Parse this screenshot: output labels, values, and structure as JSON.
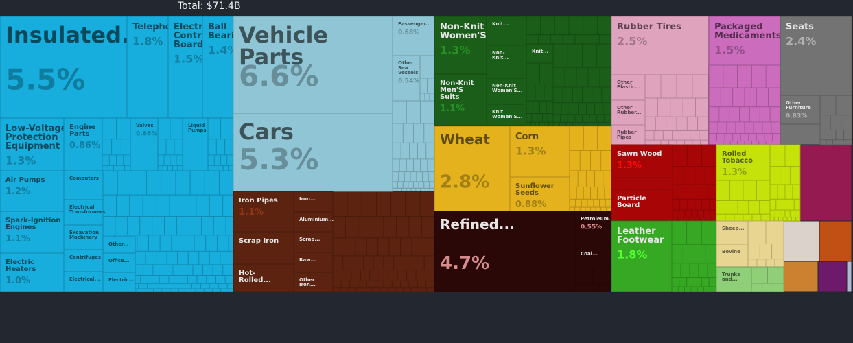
{
  "header": {
    "total": "Total: $71.4B"
  },
  "colors": {
    "background": "#222730",
    "machinery": "#17addc",
    "transportation": "#8fc5d4",
    "metals": "#5b2310",
    "vegetable_products": "#1a5e19",
    "foodstuffs_yellow": "#e3b21d",
    "mineral_dark": "#2b0808",
    "chemicals_pink": "#e0a3be",
    "chemicals_magenta": "#cb6cbc",
    "misc_grey": "#737373",
    "wood_red": "#a80606",
    "foodstuffs_lime": "#c5e20a",
    "footwear_green": "#36a823"
  },
  "chart_data": {
    "type": "treemap",
    "total": "Total: $71.4B",
    "tiles": [
      {
        "label": "Insulated...",
        "value": "5.5%",
        "group": "machinery"
      },
      {
        "label": "Telephones",
        "value": "1.8%",
        "group": "machinery"
      },
      {
        "label": "Electrical Control Boards",
        "value": "1.5%",
        "group": "machinery"
      },
      {
        "label": "Ball Bearings",
        "value": "1.4%",
        "group": "machinery"
      },
      {
        "label": "Low-Voltage Protection Equipment",
        "value": "1.3%",
        "group": "machinery"
      },
      {
        "label": "Engine Parts",
        "value": "0.86%",
        "group": "machinery"
      },
      {
        "label": "Valves",
        "value": "0.66%",
        "group": "machinery"
      },
      {
        "label": "Liquid Pumps",
        "value": "",
        "group": "machinery"
      },
      {
        "label": "Air Pumps",
        "value": "1.2%",
        "group": "machinery"
      },
      {
        "label": "Computers",
        "value": "",
        "group": "machinery"
      },
      {
        "label": "Electrical Transformers",
        "value": "",
        "group": "machinery"
      },
      {
        "label": "Spark-Ignition Engines",
        "value": "1.1%",
        "group": "machinery"
      },
      {
        "label": "Excavation Machinery",
        "value": "",
        "group": "machinery"
      },
      {
        "label": "Centrifuges",
        "value": "",
        "group": "machinery"
      },
      {
        "label": "Electric Heaters",
        "value": "1.0%",
        "group": "machinery"
      },
      {
        "label": "Electrical...",
        "value": "",
        "group": "machinery"
      },
      {
        "label": "Other...",
        "value": "",
        "group": "machinery"
      },
      {
        "label": "Office...",
        "value": "",
        "group": "machinery"
      },
      {
        "label": "Electric...",
        "value": "",
        "group": "machinery"
      },
      {
        "label": "Vehicle Parts",
        "value": "6.6%",
        "group": "transportation"
      },
      {
        "label": "Passenger...",
        "value": "0.68%",
        "group": "transportation"
      },
      {
        "label": "Other Sea Vessels",
        "value": "0.54%",
        "group": "transportation"
      },
      {
        "label": "Cars",
        "value": "5.3%",
        "group": "transportation"
      },
      {
        "label": "Iron Pipes",
        "value": "1.1%",
        "group": "metals"
      },
      {
        "label": "Iron...",
        "value": "",
        "group": "metals"
      },
      {
        "label": "Aluminium...",
        "value": "",
        "group": "metals"
      },
      {
        "label": "Scrap Iron",
        "value": "",
        "group": "metals"
      },
      {
        "label": "Scrap...",
        "value": "",
        "group": "metals"
      },
      {
        "label": "Hot- Rolled...",
        "value": "",
        "group": "metals"
      },
      {
        "label": "Raw...",
        "value": "",
        "group": "metals"
      },
      {
        "label": "Other Iron...",
        "value": "",
        "group": "metals"
      },
      {
        "label": "Non-Knit Women'S...",
        "value": "1.3%",
        "group": "textiles"
      },
      {
        "label": "Knit...",
        "value": "",
        "group": "textiles"
      },
      {
        "label": "Non- Knit...",
        "value": "",
        "group": "textiles"
      },
      {
        "label": "Knit...",
        "value": "",
        "group": "textiles"
      },
      {
        "label": "Non-Knit Men'S Suits",
        "value": "1.1%",
        "group": "textiles"
      },
      {
        "label": "Non-Knit Women'S...",
        "value": "",
        "group": "textiles"
      },
      {
        "label": "Knit Women'S...",
        "value": "",
        "group": "textiles"
      },
      {
        "label": "Wheat",
        "value": "2.8%",
        "group": "vegetable_products"
      },
      {
        "label": "Corn",
        "value": "1.3%",
        "group": "vegetable_products"
      },
      {
        "label": "Sunflower Seeds",
        "value": "0.88%",
        "group": "vegetable_products"
      },
      {
        "label": "Refined...",
        "value": "4.7%",
        "group": "mineral_products"
      },
      {
        "label": "Petroleum...",
        "value": "0.55%",
        "group": "mineral_products"
      },
      {
        "label": "Coal...",
        "value": "",
        "group": "mineral_products"
      },
      {
        "label": "Rubber Tires",
        "value": "2.5%",
        "group": "plastics_rubbers"
      },
      {
        "label": "Other Plastic...",
        "value": "",
        "group": "plastics_rubbers"
      },
      {
        "label": "Other Rubber...",
        "value": "",
        "group": "plastics_rubbers"
      },
      {
        "label": "Rubber Pipes",
        "value": "",
        "group": "plastics_rubbers"
      },
      {
        "label": "Packaged Medicaments",
        "value": "1.5%",
        "group": "chemical_products"
      },
      {
        "label": "Seats",
        "value": "2.4%",
        "group": "miscellaneous"
      },
      {
        "label": "Other Furniture",
        "value": "0.83%",
        "group": "miscellaneous"
      },
      {
        "label": "Sawn Wood",
        "value": "1.3%",
        "group": "wood_products"
      },
      {
        "label": "Particle Board",
        "value": "",
        "group": "wood_products"
      },
      {
        "label": "Rolled Tobacco",
        "value": "1.3%",
        "group": "foodstuffs"
      },
      {
        "label": "Leather Footwear",
        "value": "1.8%",
        "group": "footwear"
      },
      {
        "label": "Sheep...",
        "value": "",
        "group": "animal_hides"
      },
      {
        "label": "Bovine",
        "value": "",
        "group": "animal_hides"
      },
      {
        "label": "Trunks and...",
        "value": "",
        "group": "animal_hides"
      }
    ]
  }
}
